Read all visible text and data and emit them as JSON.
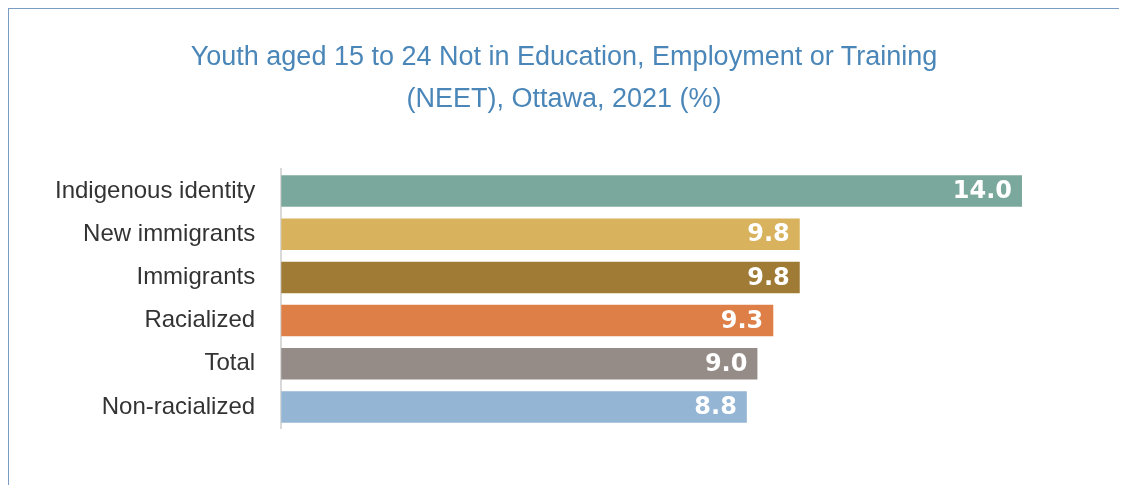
{
  "chart_data": {
    "type": "bar",
    "orientation": "horizontal",
    "title": "Youth aged 15 to 24 Not in Education, Employment or Training (NEET), Ottawa, 2021 (%)",
    "categories": [
      "Indigenous identity",
      "New immigrants",
      "Immigrants",
      "Racialized",
      "Total",
      "Non-racialized"
    ],
    "values": [
      14.0,
      9.8,
      9.8,
      9.3,
      9.0,
      8.8
    ],
    "value_labels": [
      "14.0",
      "9.8",
      "9.8",
      "9.3",
      "9.0",
      "8.8"
    ],
    "colors": [
      "#7ba89c",
      "#d8b25c",
      "#a07b36",
      "#dd7f47",
      "#958b87",
      "#94b5d3"
    ],
    "legend": false
  }
}
